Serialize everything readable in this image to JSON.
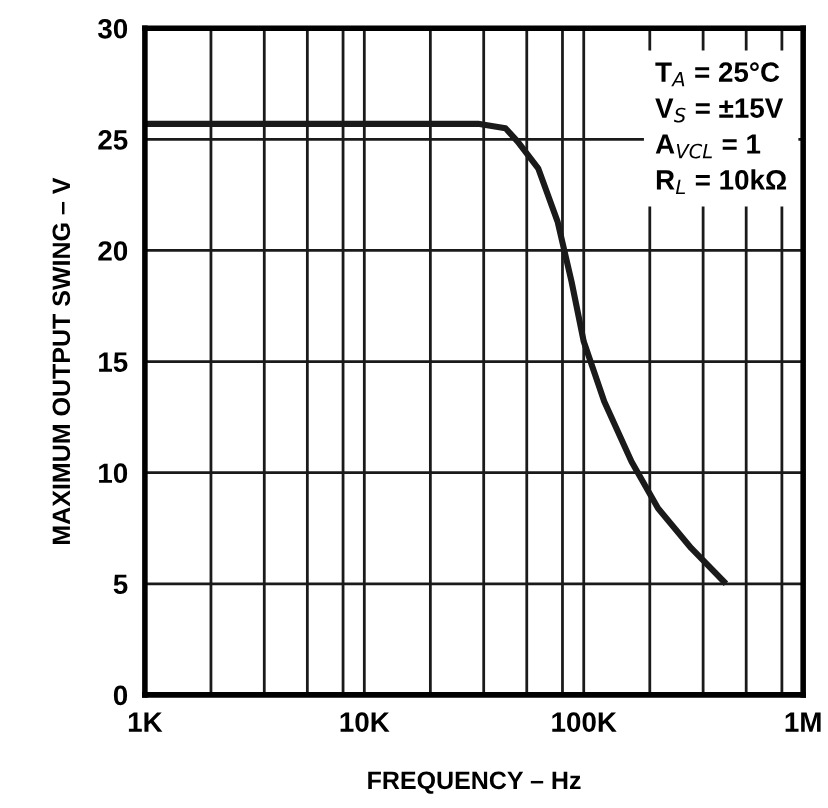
{
  "chart_data": {
    "type": "line",
    "xlabel": "FREQUENCY – Hz",
    "ylabel": "MAXIMUM OUTPUT SWING – V",
    "annotations": [
      "T$_{A}$ = 25°C",
      "V$_{S}$ = ±15V",
      "A$_{VCL}$ = 1",
      "R$_{L}$ = 10kΩ"
    ],
    "series": [
      {
        "color": "#1a1a1a",
        "x": [
          1000,
          33000,
          44000,
          50000,
          62000,
          76000,
          88000,
          100000,
          124000,
          165000,
          218000,
          309000,
          435000
        ],
        "values": [
          25.7,
          25.7,
          25.5,
          24.9,
          23.7,
          21.3,
          18.6,
          15.9,
          13.2,
          10.5,
          8.4,
          6.6,
          5.1
        ]
      }
    ],
    "log": "x",
    "xlim": [
      1000,
      1000000
    ],
    "ylim": [
      0,
      30
    ],
    "xticks": [
      {
        "value": 1000,
        "label": "1K"
      },
      {
        "value": 2000,
        "label": null
      },
      {
        "value": 3500,
        "label": null
      },
      {
        "value": 5500,
        "label": null
      },
      {
        "value": 8000,
        "label": null
      },
      {
        "value": 10000,
        "label": "10K"
      },
      {
        "value": 20000,
        "label": null
      },
      {
        "value": 35000,
        "label": null
      },
      {
        "value": 55000,
        "label": null
      },
      {
        "value": 80000,
        "label": null
      },
      {
        "value": 100000,
        "label": "100K"
      },
      {
        "value": 200000,
        "label": null
      },
      {
        "value": 350000,
        "label": null
      },
      {
        "value": 550000,
        "label": null
      },
      {
        "value": 800000,
        "label": null
      },
      {
        "value": 1000000,
        "label": "1M"
      }
    ],
    "yticks": [
      0,
      5,
      10,
      15,
      20,
      25,
      30
    ],
    "grid": true,
    "marker": "none",
    "line_style": "solid"
  }
}
